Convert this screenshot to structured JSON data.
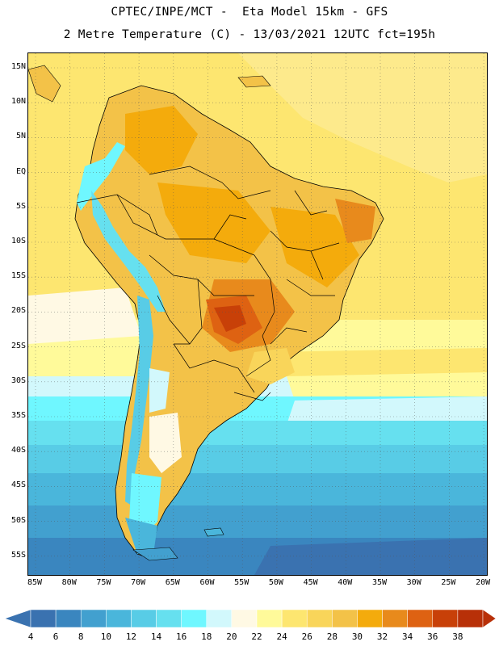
{
  "title": {
    "line1": "CPTEC/INPE/MCT -  Eta Model 15km - GFS",
    "line2": "2 Metre Temperature (C) - 13/03/2021 12UTC fct=195h"
  },
  "lat_labels": [
    "15N",
    "10N",
    "5N",
    "EQ",
    "5S",
    "10S",
    "15S",
    "20S",
    "25S",
    "30S",
    "35S",
    "40S",
    "45S",
    "50S",
    "55S"
  ],
  "lon_labels": [
    "85W",
    "80W",
    "75W",
    "70W",
    "65W",
    "60W",
    "55W",
    "50W",
    "45W",
    "40W",
    "35W",
    "30W",
    "25W",
    "20W"
  ],
  "colorbar": {
    "values": [
      "4",
      "6",
      "8",
      "10",
      "12",
      "14",
      "16",
      "18",
      "20",
      "22",
      "24",
      "26",
      "28",
      "30",
      "32",
      "34",
      "36",
      "38"
    ],
    "colors": [
      "#3a72b0",
      "#3a86bf",
      "#42a0cf",
      "#4ab6db",
      "#58cce6",
      "#66e0ef",
      "#6ff7ff",
      "#d2f8fc",
      "#fff9e4",
      "#fffa9a",
      "#fde670",
      "#f9d55a",
      "#f3c248",
      "#f4ab0c",
      "#e88a1c",
      "#de6212",
      "#c84008",
      "#b83008"
    ]
  },
  "colors": {
    "ocean_tropical": "#fde670",
    "land_warm": "#f3c248",
    "land_hot": "#e88a1c",
    "land_hottest": "#c84008",
    "andes_cold": "#58cce6",
    "ocean_cold": "#3a86bf"
  }
}
